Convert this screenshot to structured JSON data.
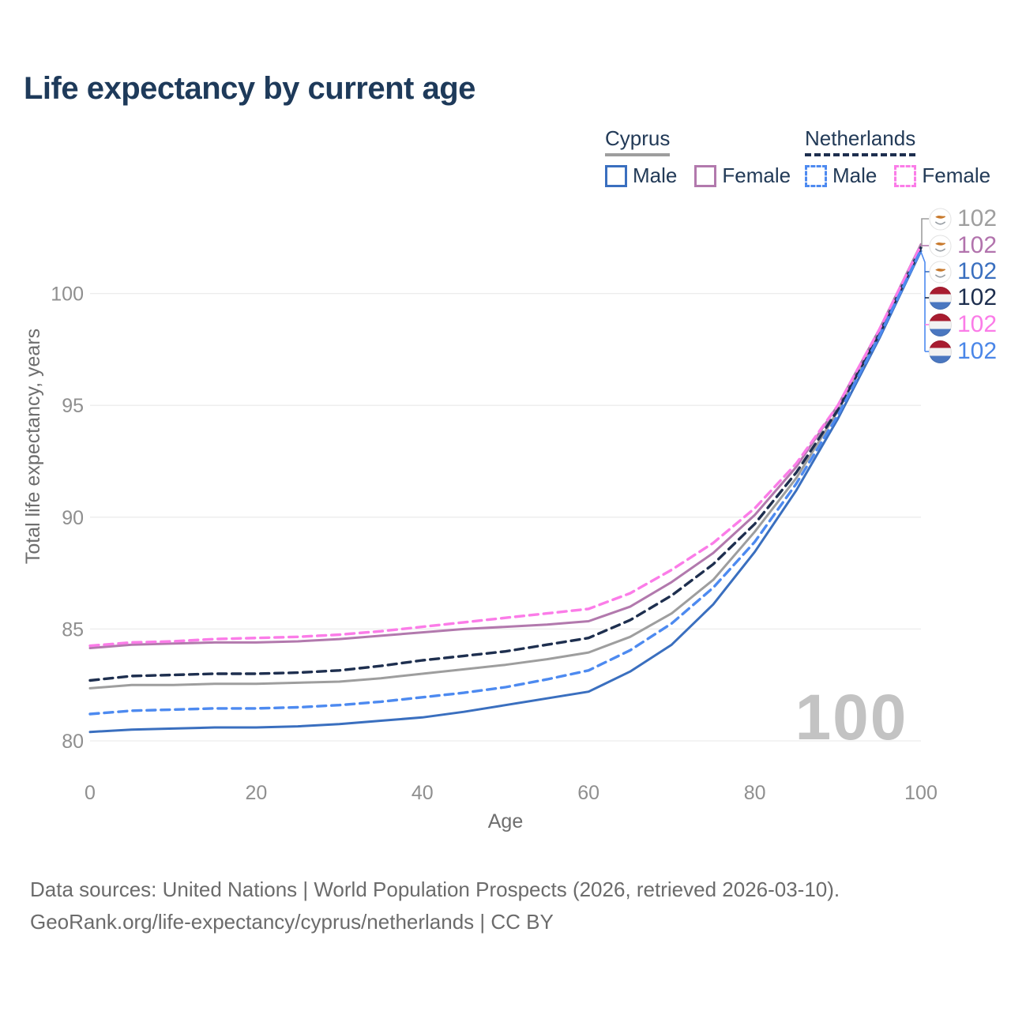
{
  "title": "Life expectancy by current age",
  "legend": {
    "groups": [
      {
        "label": "Cyprus",
        "line_style": "solid",
        "line_color": "#9e9e9e",
        "items": [
          {
            "label": "Male",
            "color": "#3a6fbf",
            "dashed": false
          },
          {
            "label": "Female",
            "color": "#b279ad",
            "dashed": false
          }
        ]
      },
      {
        "label": "Netherlands",
        "line_style": "dashed",
        "line_color": "#1e2f4f",
        "items": [
          {
            "label": "Male",
            "color": "#4d8af0",
            "dashed": true
          },
          {
            "label": "Female",
            "color": "#fb7ce8",
            "dashed": true
          }
        ]
      }
    ]
  },
  "chart_data": {
    "type": "line",
    "title": "Life expectancy by current age",
    "xlabel": "Age",
    "ylabel": "Total life expectancy, years",
    "xticks": [
      0,
      20,
      40,
      60,
      80,
      100
    ],
    "yticks": [
      80,
      85,
      90,
      95,
      100
    ],
    "xlim": [
      0,
      100
    ],
    "ylim": [
      79.6,
      102.6
    ],
    "grid": true,
    "legend_position": "top-right",
    "watermark": "100",
    "x": [
      0,
      5,
      10,
      15,
      20,
      25,
      30,
      35,
      40,
      45,
      50,
      55,
      60,
      65,
      70,
      75,
      80,
      85,
      90,
      95,
      100
    ],
    "series": [
      {
        "id": "cyprus-all",
        "name": "Cyprus",
        "country": "Cyprus",
        "sex": "both",
        "color": "#9e9e9e",
        "dashed": false,
        "end_label": "102",
        "values": [
          82.35,
          82.5,
          82.5,
          82.55,
          82.55,
          82.6,
          82.65,
          82.8,
          83.0,
          83.2,
          83.4,
          83.65,
          83.95,
          84.65,
          85.7,
          87.2,
          89.35,
          91.75,
          94.75,
          98.2,
          102.1
        ]
      },
      {
        "id": "cyprus-female",
        "name": "Cyprus Female",
        "country": "Cyprus",
        "sex": "female",
        "color": "#b279ad",
        "dashed": false,
        "end_label": "102",
        "values": [
          84.15,
          84.3,
          84.35,
          84.4,
          84.4,
          84.45,
          84.55,
          84.7,
          84.85,
          85.0,
          85.1,
          85.2,
          85.35,
          86.0,
          87.1,
          88.4,
          90.1,
          92.25,
          95.0,
          98.4,
          102.2
        ]
      },
      {
        "id": "cyprus-male",
        "name": "Cyprus Male",
        "country": "Cyprus",
        "sex": "male",
        "color": "#3a6fbf",
        "dashed": false,
        "end_label": "102",
        "values": [
          80.4,
          80.5,
          80.55,
          80.6,
          80.6,
          80.65,
          80.75,
          80.9,
          81.05,
          81.3,
          81.6,
          81.9,
          82.2,
          83.1,
          84.3,
          86.1,
          88.45,
          91.2,
          94.4,
          98.0,
          101.9
        ]
      },
      {
        "id": "netherlands-all",
        "name": "Netherlands",
        "country": "Netherlands",
        "sex": "both",
        "color": "#1e2f4f",
        "dashed": true,
        "end_label": "102",
        "values": [
          82.7,
          82.9,
          82.95,
          83.0,
          83.0,
          83.05,
          83.15,
          83.35,
          83.6,
          83.8,
          84.0,
          84.3,
          84.6,
          85.4,
          86.5,
          87.9,
          89.7,
          92.0,
          94.8,
          98.2,
          102.05
        ]
      },
      {
        "id": "netherlands-female",
        "name": "Netherlands Female",
        "country": "Netherlands",
        "sex": "female",
        "color": "#fb7ce8",
        "dashed": true,
        "end_label": "102",
        "values": [
          84.25,
          84.4,
          84.45,
          84.55,
          84.6,
          84.65,
          84.75,
          84.9,
          85.1,
          85.3,
          85.5,
          85.7,
          85.9,
          86.6,
          87.65,
          88.85,
          90.4,
          92.4,
          95.0,
          98.4,
          102.15
        ]
      },
      {
        "id": "netherlands-male",
        "name": "Netherlands Male",
        "country": "Netherlands",
        "sex": "male",
        "color": "#4d8af0",
        "dashed": true,
        "end_label": "102",
        "values": [
          81.2,
          81.35,
          81.4,
          81.45,
          81.45,
          81.5,
          81.6,
          81.75,
          81.95,
          82.15,
          82.4,
          82.75,
          83.15,
          84.05,
          85.25,
          86.85,
          88.9,
          91.5,
          94.55,
          98.1,
          101.95
        ]
      }
    ],
    "end_labels": [
      {
        "id": "cyprus-all",
        "text": "102",
        "color": "#9e9e9e",
        "flag": "cyprus"
      },
      {
        "id": "cyprus-female",
        "text": "102",
        "color": "#b273ad",
        "flag": "cyprus"
      },
      {
        "id": "cyprus-male",
        "text": "102",
        "color": "#3a6fbf",
        "flag": "cyprus"
      },
      {
        "id": "netherlands-all",
        "text": "102",
        "color": "#1d2e4e",
        "flag": "netherlands"
      },
      {
        "id": "netherlands-female",
        "text": "102",
        "color": "#fb7ce8",
        "flag": "netherlands"
      },
      {
        "id": "netherlands-male",
        "text": "102",
        "color": "#4a86e8",
        "flag": "netherlands"
      }
    ]
  },
  "footer": {
    "line1": "Data sources: United Nations | World Population Prospects (2026, retrieved 2026-03-10).",
    "line2": "GeoRank.org/life-expectancy/cyprus/netherlands | CC BY"
  }
}
